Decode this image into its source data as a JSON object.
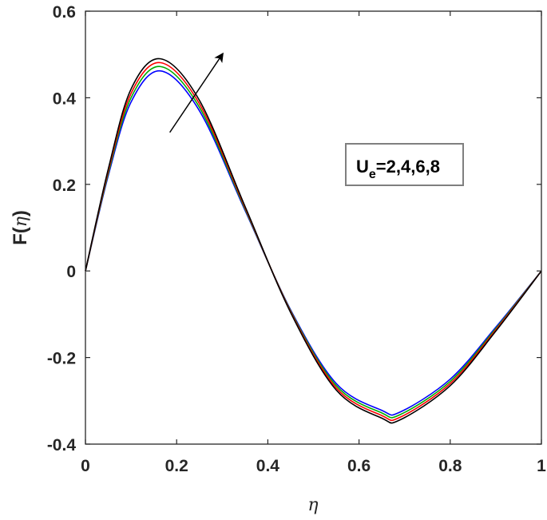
{
  "chart_data": {
    "type": "line",
    "title": "",
    "xlabel": "η",
    "ylabel_main": "F(",
    "ylabel_sym": "η",
    "ylabel_close": ")",
    "xlim": [
      0,
      1
    ],
    "ylim": [
      -0.4,
      0.6
    ],
    "xticks": [
      0,
      0.2,
      0.4,
      0.6,
      0.8,
      1
    ],
    "xtick_labels": [
      "0",
      "0.2",
      "0.4",
      "0.6",
      "0.8",
      "1"
    ],
    "yticks": [
      -0.4,
      -0.2,
      0,
      0.2,
      0.4,
      0.6
    ],
    "ytick_labels": [
      "-0.4",
      "-0.2",
      "0",
      "0.2",
      "0.4",
      "0.6"
    ],
    "grid": false,
    "legend": "none",
    "series": [
      {
        "color": "#0000ff",
        "x": [
          0,
          0.05,
          0.1,
          0.165,
          0.25,
          0.35,
          0.45,
          0.55,
          0.65,
          0.69,
          0.8,
          0.9,
          1
        ],
        "y": [
          0,
          0.22,
          0.39,
          0.462,
          0.37,
          0.14,
          -0.09,
          -0.26,
          -0.322,
          -0.326,
          -0.25,
          -0.13,
          0
        ]
      },
      {
        "color": "#00aa00",
        "x": [
          0,
          0.05,
          0.1,
          0.165,
          0.25,
          0.35,
          0.45,
          0.55,
          0.65,
          0.69,
          0.8,
          0.9,
          1
        ],
        "y": [
          0,
          0.225,
          0.4,
          0.472,
          0.378,
          0.143,
          -0.092,
          -0.265,
          -0.328,
          -0.332,
          -0.255,
          -0.133,
          0
        ]
      },
      {
        "color": "#ff0000",
        "x": [
          0,
          0.05,
          0.1,
          0.165,
          0.25,
          0.35,
          0.45,
          0.55,
          0.65,
          0.69,
          0.8,
          0.9,
          1
        ],
        "y": [
          0,
          0.23,
          0.41,
          0.481,
          0.386,
          0.146,
          -0.094,
          -0.27,
          -0.334,
          -0.338,
          -0.26,
          -0.136,
          0
        ]
      },
      {
        "color": "#000000",
        "x": [
          0,
          0.05,
          0.1,
          0.165,
          0.25,
          0.35,
          0.45,
          0.55,
          0.65,
          0.69,
          0.8,
          0.9,
          1
        ],
        "y": [
          0,
          0.235,
          0.42,
          0.49,
          0.394,
          0.149,
          -0.096,
          -0.275,
          -0.34,
          -0.344,
          -0.265,
          -0.139,
          0
        ]
      }
    ],
    "annotation": {
      "text_main": "U",
      "text_sub": "e",
      "text_rest": "=2,4,6,8",
      "arrow_from": [
        0.185,
        0.32
      ],
      "arrow_to": [
        0.3,
        0.5
      ]
    }
  }
}
